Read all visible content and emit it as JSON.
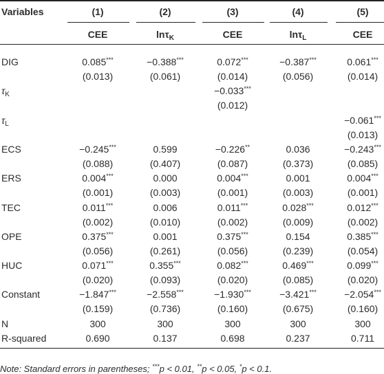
{
  "header": {
    "label": "Variables",
    "columns": [
      {
        "number": "(1)",
        "name": "CEE"
      },
      {
        "number": "(2)",
        "name": "lnτ",
        "sub": "K"
      },
      {
        "number": "(3)",
        "name": "CEE"
      },
      {
        "number": "(4)",
        "name": "lnτ",
        "sub": "L"
      },
      {
        "number": "(5)",
        "name": "CEE"
      }
    ]
  },
  "rows": [
    {
      "label": "DIG",
      "cells": [
        {
          "coef": "0.085",
          "sig": "***",
          "se": "(0.013)"
        },
        {
          "coef": "−0.388",
          "sig": "***",
          "se": "(0.061)"
        },
        {
          "coef": "0.072",
          "sig": "***",
          "se": "(0.014)"
        },
        {
          "coef": "−0.387",
          "sig": "***",
          "se": "(0.056)"
        },
        {
          "coef": "0.061",
          "sig": "***",
          "se": "(0.014)"
        }
      ]
    },
    {
      "label": "τ",
      "sub": "K",
      "cells": [
        null,
        null,
        {
          "coef": "−0.033",
          "sig": "***",
          "se": "(0.012)"
        },
        null,
        null
      ]
    },
    {
      "label": "τ",
      "sub": "L",
      "cells": [
        null,
        null,
        null,
        null,
        {
          "coef": "−0.061",
          "sig": "***",
          "se": "(0.013)"
        }
      ]
    },
    {
      "label": "ECS",
      "cells": [
        {
          "coef": "−0.245",
          "sig": "***",
          "se": "(0.088)"
        },
        {
          "coef": "0.599",
          "se": "(0.407)"
        },
        {
          "coef": "−0.226",
          "sig": "**",
          "se": "(0.087)"
        },
        {
          "coef": "0.036",
          "se": "(0.373)"
        },
        {
          "coef": "−0.243",
          "sig": "***",
          "se": "(0.085)"
        }
      ]
    },
    {
      "label": "ERS",
      "cells": [
        {
          "coef": "0.004",
          "sig": "***",
          "se": "(0.001)"
        },
        {
          "coef": "0.000",
          "se": "(0.003)"
        },
        {
          "coef": "0.004",
          "sig": "***",
          "se": "(0.001)"
        },
        {
          "coef": "0.001",
          "se": "(0.003)"
        },
        {
          "coef": "0.004",
          "sig": "***",
          "se": "(0.001)"
        }
      ]
    },
    {
      "label": "TEC",
      "cells": [
        {
          "coef": "0.011",
          "sig": "***",
          "se": "(0.002)"
        },
        {
          "coef": "0.006",
          "se": "(0.010)"
        },
        {
          "coef": "0.011",
          "sig": "***",
          "se": "(0.002)"
        },
        {
          "coef": "0.028",
          "sig": "***",
          "se": "(0.009)"
        },
        {
          "coef": "0.012",
          "sig": "***",
          "se": "(0.002)"
        }
      ]
    },
    {
      "label": "OPE",
      "cells": [
        {
          "coef": "0.375",
          "sig": "***",
          "se": "(0.056)"
        },
        {
          "coef": "0.001",
          "se": "(0.261)"
        },
        {
          "coef": "0.375",
          "sig": "***",
          "se": "(0.056)"
        },
        {
          "coef": "0.154",
          "se": "(0.239)"
        },
        {
          "coef": "0.385",
          "sig": "***",
          "se": "(0.054)"
        }
      ]
    },
    {
      "label": "HUC",
      "cells": [
        {
          "coef": "0.071",
          "sig": "***",
          "se": "(0.020)"
        },
        {
          "coef": "0.355",
          "sig": "***",
          "se": "(0.093)"
        },
        {
          "coef": "0.082",
          "sig": "***",
          "se": "(0.020)"
        },
        {
          "coef": "0.469",
          "sig": "***",
          "se": "(0.085)"
        },
        {
          "coef": "0.099",
          "sig": "***",
          "se": "(0.020)"
        }
      ]
    },
    {
      "label": "Constant",
      "cells": [
        {
          "coef": "−1.847",
          "sig": "***",
          "se": "(0.159)"
        },
        {
          "coef": "−2.558",
          "sig": "***",
          "se": "(0.736)"
        },
        {
          "coef": "−1.930",
          "sig": "***",
          "se": "(0.160)"
        },
        {
          "coef": "−3.421",
          "sig": "***",
          "se": "(0.675)"
        },
        {
          "coef": "−2.054",
          "sig": "***",
          "se": "(0.160)"
        }
      ]
    },
    {
      "label": "N",
      "cells": [
        {
          "coef": "300"
        },
        {
          "coef": "300"
        },
        {
          "coef": "300"
        },
        {
          "coef": "300"
        },
        {
          "coef": "300"
        }
      ]
    },
    {
      "label": "R-squared",
      "cells": [
        {
          "coef": "0.690"
        },
        {
          "coef": "0.137"
        },
        {
          "coef": "0.698"
        },
        {
          "coef": "0.237"
        },
        {
          "coef": "0.711"
        }
      ]
    }
  ],
  "note": [
    {
      "text": "Note: Standard errors in parentheses; "
    },
    {
      "sup": "***"
    },
    {
      "text": "p < 0.01, "
    },
    {
      "sup": "**"
    },
    {
      "text": "p < 0.05, "
    },
    {
      "sup": "*"
    },
    {
      "text": "p < 0.1."
    }
  ]
}
